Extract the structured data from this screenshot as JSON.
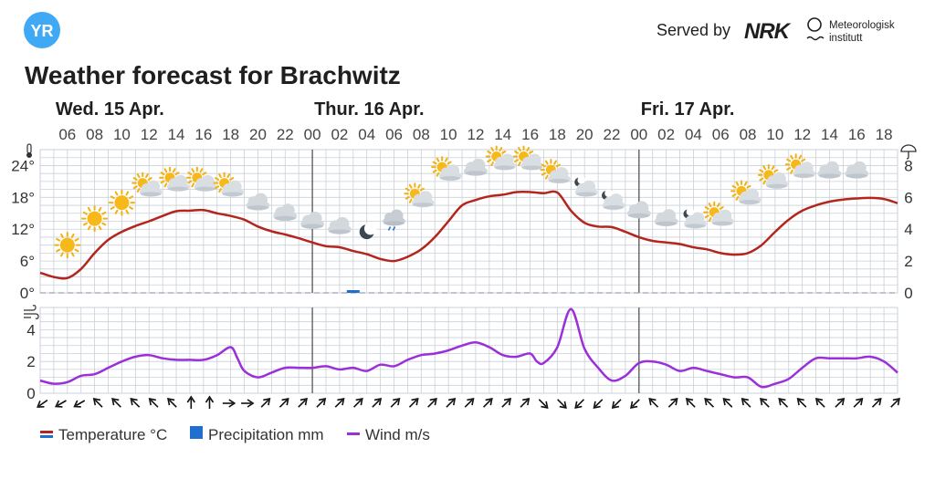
{
  "header": {
    "logo_text": "YR",
    "served_by": "Served by",
    "nrk_logo": "NRK",
    "met_line1": "Meteorologisk",
    "met_line2": "institutt"
  },
  "title": "Weather forecast for Brachwitz",
  "days": [
    {
      "label": "Wed. 15 Apr.",
      "start_hour": 5
    },
    {
      "label": "Thur. 16 Apr.",
      "start_hour": 24
    },
    {
      "label": "Fri. 17 Apr.",
      "start_hour": 48
    }
  ],
  "legend": {
    "temperature": "Temperature °C",
    "precipitation": "Precipitation mm",
    "wind": "Wind m/s"
  },
  "colors": {
    "temperature": "#b3261e",
    "precipitation": "#1f6fd0",
    "wind": "#9b30d9",
    "grid": "#c9d0d8",
    "day_line": "#555555",
    "logo": "#3fa9f5"
  },
  "chart_data": [
    {
      "type": "line",
      "name": "temperature-precipitation",
      "x_unit": "hours from Wed. 15 Apr. 00:00",
      "x_range": [
        4,
        67
      ],
      "x_tick_labels": [
        "06",
        "08",
        "10",
        "12",
        "14",
        "16",
        "18",
        "20",
        "22",
        "00",
        "02",
        "04",
        "06",
        "08",
        "10",
        "12",
        "14",
        "16",
        "18",
        "20",
        "22",
        "00",
        "02",
        "04",
        "06",
        "08",
        "10",
        "12",
        "14",
        "16",
        "18"
      ],
      "y_left_ticks": [
        "0°",
        "6°",
        "12°",
        "18°",
        "24°"
      ],
      "y_left_range": [
        0,
        27
      ],
      "y_right_ticks": [
        "0",
        "2",
        "4",
        "6",
        "8"
      ],
      "y_right_range": [
        0,
        9
      ],
      "series": [
        {
          "name": "Temperature °C",
          "x": [
            4,
            5,
            6,
            7,
            8,
            9,
            10,
            11,
            12,
            13,
            14,
            15,
            16,
            17,
            18,
            19,
            20,
            21,
            22,
            23,
            24,
            25,
            26,
            27,
            28,
            29,
            30,
            31,
            32,
            33,
            34,
            35,
            36,
            37,
            38,
            39,
            40,
            41,
            42,
            43,
            44,
            45,
            46,
            47,
            48,
            49,
            50,
            51,
            52,
            53,
            54,
            55,
            56,
            57,
            58,
            59,
            60,
            61,
            62,
            63,
            64,
            65,
            66,
            67
          ],
          "values": [
            3.8,
            3.0,
            2.8,
            4.5,
            7.5,
            10.0,
            11.5,
            12.6,
            13.5,
            14.5,
            15.4,
            15.5,
            15.6,
            15.0,
            14.5,
            13.8,
            12.5,
            11.6,
            11.0,
            10.3,
            9.5,
            8.8,
            8.6,
            7.9,
            7.3,
            6.4,
            6.0,
            6.8,
            8.2,
            10.5,
            13.5,
            16.5,
            17.5,
            18.2,
            18.5,
            19.0,
            19.0,
            18.8,
            18.9,
            15.5,
            13.2,
            12.5,
            12.4,
            11.5,
            10.5,
            9.8,
            9.5,
            9.2,
            8.6,
            8.2,
            7.5,
            7.2,
            7.5,
            9.0,
            11.5,
            13.8,
            15.5,
            16.5,
            17.2,
            17.6,
            17.8,
            17.9,
            17.7,
            16.9
          ]
        },
        {
          "name": "Precipitation mm",
          "type": "bar",
          "x": [
            27
          ],
          "values": [
            0.1
          ]
        }
      ],
      "symbols": [
        {
          "x": 6,
          "t": 9,
          "icon": "sun"
        },
        {
          "x": 8,
          "t": 14,
          "icon": "sun"
        },
        {
          "x": 10,
          "t": 17,
          "icon": "sun"
        },
        {
          "x": 12,
          "t": 19.5,
          "icon": "partly-cloudy"
        },
        {
          "x": 14,
          "t": 20.5,
          "icon": "partly-cloudy"
        },
        {
          "x": 16,
          "t": 20.5,
          "icon": "partly-cloudy"
        },
        {
          "x": 18,
          "t": 19.5,
          "icon": "partly-cloudy"
        },
        {
          "x": 20,
          "t": 17,
          "icon": "cloudy"
        },
        {
          "x": 22,
          "t": 15,
          "icon": "cloudy"
        },
        {
          "x": 24,
          "t": 13.5,
          "icon": "cloudy"
        },
        {
          "x": 26,
          "t": 12.5,
          "icon": "cloudy"
        },
        {
          "x": 28,
          "t": 11.5,
          "icon": "moon"
        },
        {
          "x": 30,
          "t": 13.5,
          "icon": "rain"
        },
        {
          "x": 32,
          "t": 17.5,
          "icon": "partly-cloudy"
        },
        {
          "x": 34,
          "t": 22.5,
          "icon": "partly-cloudy"
        },
        {
          "x": 36,
          "t": 23.5,
          "icon": "cloudy"
        },
        {
          "x": 38,
          "t": 24.5,
          "icon": "partly-cloudy"
        },
        {
          "x": 40,
          "t": 24.5,
          "icon": "partly-cloudy"
        },
        {
          "x": 42,
          "t": 22,
          "icon": "partly-cloudy"
        },
        {
          "x": 44,
          "t": 19.5,
          "icon": "night-cloudy"
        },
        {
          "x": 46,
          "t": 17,
          "icon": "night-cloudy"
        },
        {
          "x": 48,
          "t": 15.5,
          "icon": "cloudy"
        },
        {
          "x": 50,
          "t": 14,
          "icon": "cloudy"
        },
        {
          "x": 52,
          "t": 13.5,
          "icon": "night-cloudy"
        },
        {
          "x": 54,
          "t": 14,
          "icon": "partly-cloudy"
        },
        {
          "x": 56,
          "t": 18,
          "icon": "partly-cloudy"
        },
        {
          "x": 58,
          "t": 21,
          "icon": "partly-cloudy"
        },
        {
          "x": 60,
          "t": 23,
          "icon": "partly-cloudy"
        },
        {
          "x": 62,
          "t": 23,
          "icon": "cloudy"
        },
        {
          "x": 64,
          "t": 23,
          "icon": "cloudy"
        }
      ]
    },
    {
      "type": "line",
      "name": "wind",
      "x_unit": "hours from Wed. 15 Apr. 00:00",
      "x_range": [
        4,
        67
      ],
      "y_ticks": [
        "0",
        "2",
        "4"
      ],
      "y_range": [
        0,
        5.4
      ],
      "series": [
        {
          "name": "Wind m/s",
          "x": [
            4,
            5,
            6,
            7,
            8,
            9,
            10,
            11,
            12,
            13,
            14,
            15,
            16,
            17,
            18,
            18.5,
            19,
            20,
            21,
            22,
            23,
            24,
            25,
            26,
            27,
            28,
            29,
            30,
            31,
            32,
            33,
            34,
            35,
            36,
            37,
            38,
            39,
            40,
            40.5,
            41,
            42,
            43,
            44,
            45,
            46,
            47,
            48,
            49,
            50,
            51,
            52,
            53,
            54,
            55,
            56,
            57,
            58,
            59,
            60,
            61,
            62,
            63,
            64,
            65,
            66,
            67
          ],
          "values": [
            0.8,
            0.6,
            0.7,
            1.1,
            1.2,
            1.6,
            2.0,
            2.3,
            2.4,
            2.2,
            2.1,
            2.1,
            2.1,
            2.4,
            2.9,
            2.2,
            1.4,
            1.0,
            1.3,
            1.6,
            1.6,
            1.6,
            1.7,
            1.5,
            1.6,
            1.4,
            1.8,
            1.7,
            2.1,
            2.4,
            2.5,
            2.7,
            3.0,
            3.2,
            2.9,
            2.4,
            2.3,
            2.5,
            2.0,
            1.9,
            2.9,
            5.3,
            2.8,
            1.6,
            0.8,
            1.1,
            1.9,
            2.0,
            1.8,
            1.4,
            1.6,
            1.4,
            1.2,
            1.0,
            1.0,
            0.4,
            0.6,
            0.9,
            1.6,
            2.2,
            2.2,
            2.2,
            2.2,
            2.3,
            2.0,
            1.3
          ]
        }
      ],
      "wind_direction_deg": [
        235,
        240,
        240,
        315,
        315,
        315,
        315,
        315,
        0,
        0,
        90,
        90,
        45,
        45,
        45,
        45,
        45,
        45,
        45,
        45,
        45,
        45,
        45,
        45,
        45,
        45,
        45,
        135,
        135,
        225,
        225,
        225,
        225,
        315,
        45,
        315,
        315,
        315,
        315,
        315,
        315,
        315,
        315,
        45,
        45,
        45,
        45
      ]
    }
  ]
}
